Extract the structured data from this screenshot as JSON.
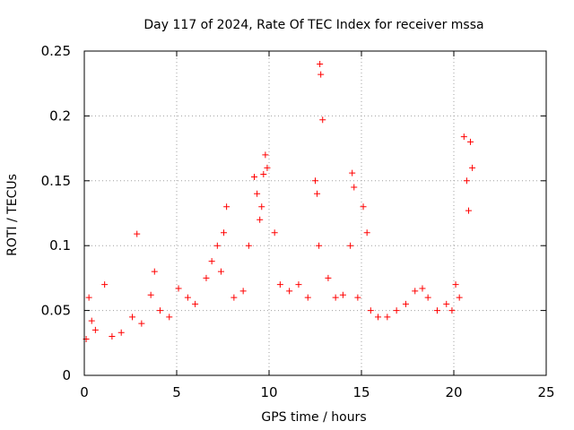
{
  "chart_data": {
    "type": "scatter",
    "title": "Day 117 of 2024, Rate Of TEC Index for receiver mssa",
    "xlabel": "GPS time / hours",
    "ylabel": "ROTI / TECUs",
    "xlim": [
      0,
      25
    ],
    "ylim": [
      0,
      0.25
    ],
    "xticks": [
      "0",
      "5",
      "10",
      "15",
      "20",
      "25"
    ],
    "yticks": [
      "0",
      "0.05",
      "0.1",
      "0.15",
      "0.2",
      "0.25"
    ],
    "grid": true,
    "marker": "plus",
    "colors": {
      "series": "#ff0000",
      "grid": "#a0a0a0",
      "axis": "#000000"
    },
    "series": [
      {
        "x": [
          0.1,
          0.25,
          0.4,
          0.6,
          1.1,
          1.5,
          2.0,
          2.6,
          2.85,
          3.1,
          3.6,
          3.8,
          4.1,
          4.6,
          5.1,
          5.6,
          6.0,
          6.6,
          6.9,
          7.2,
          7.4,
          7.55,
          7.7,
          8.1,
          8.6,
          8.9,
          9.2,
          9.35,
          9.5,
          9.6,
          9.7,
          9.8,
          9.9,
          10.3,
          10.6,
          11.1,
          11.6,
          12.1,
          12.5,
          12.6,
          12.7,
          12.75,
          12.8,
          12.9,
          13.2,
          13.6,
          14.0,
          14.4,
          14.5,
          14.6,
          14.8,
          15.1,
          15.3,
          15.5,
          15.9,
          16.4,
          16.9,
          17.4,
          17.9,
          18.3,
          18.6,
          19.1,
          19.6,
          19.9,
          20.1,
          20.3,
          20.55,
          20.7,
          20.8,
          20.9,
          21.0
        ],
        "y": [
          0.028,
          0.06,
          0.042,
          0.035,
          0.07,
          0.03,
          0.033,
          0.045,
          0.109,
          0.04,
          0.062,
          0.08,
          0.05,
          0.045,
          0.067,
          0.06,
          0.055,
          0.075,
          0.088,
          0.1,
          0.08,
          0.11,
          0.13,
          0.06,
          0.065,
          0.1,
          0.153,
          0.14,
          0.12,
          0.13,
          0.155,
          0.17,
          0.16,
          0.11,
          0.07,
          0.065,
          0.07,
          0.06,
          0.15,
          0.14,
          0.1,
          0.24,
          0.232,
          0.197,
          0.075,
          0.06,
          0.062,
          0.1,
          0.156,
          0.145,
          0.06,
          0.13,
          0.11,
          0.05,
          0.045,
          0.045,
          0.05,
          0.055,
          0.065,
          0.067,
          0.06,
          0.05,
          0.055,
          0.05,
          0.07,
          0.06,
          0.184,
          0.15,
          0.127,
          0.18,
          0.16
        ]
      }
    ]
  }
}
